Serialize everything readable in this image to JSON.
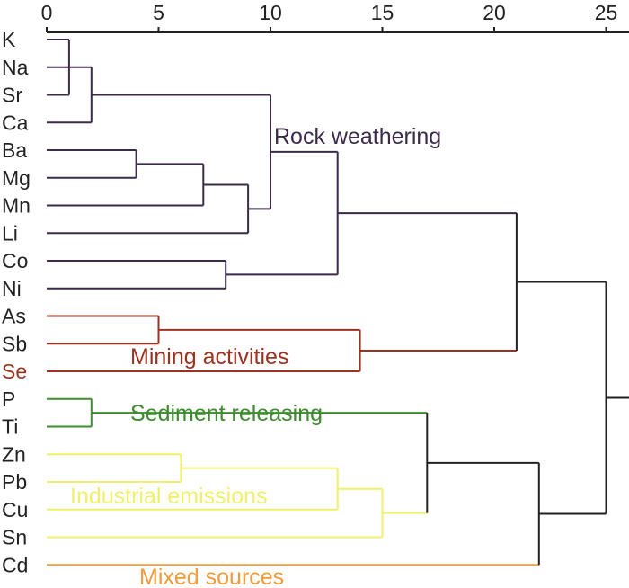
{
  "chart_data": {
    "type": "dendrogram",
    "xlim": [
      0,
      25
    ],
    "xticks": [
      0,
      5,
      10,
      15,
      20,
      25
    ],
    "tree": {
      "height": 25,
      "color": "#222222",
      "children": [
        {
          "height": 21,
          "color": "#222222",
          "children": [
            {
              "height": 13,
              "color": "#3b2a4a",
              "children": [
                {
                  "height": 10,
                  "color": "#3b2a4a",
                  "children": [
                    {
                      "height": 2,
                      "color": "#3b2a4a",
                      "children": [
                        {
                          "height": 1,
                          "color": "#3b2a4a",
                          "children": [
                            {
                              "label": "K",
                              "color": "#3b2a4a"
                            },
                            {
                              "label": "Na",
                              "color": "#3b2a4a"
                            },
                            {
                              "label": "Sr",
                              "color": "#3b2a4a"
                            }
                          ]
                        },
                        {
                          "label": "Ca",
                          "color": "#3b2a4a"
                        }
                      ]
                    },
                    {
                      "height": 9,
                      "color": "#3b2a4a",
                      "children": [
                        {
                          "height": 7,
                          "color": "#3b2a4a",
                          "children": [
                            {
                              "height": 4,
                              "color": "#3b2a4a",
                              "children": [
                                {
                                  "label": "Ba",
                                  "color": "#3b2a4a"
                                },
                                {
                                  "label": "Mg",
                                  "color": "#3b2a4a"
                                }
                              ]
                            },
                            {
                              "label": "Mn",
                              "color": "#3b2a4a"
                            }
                          ]
                        },
                        {
                          "label": "Li",
                          "color": "#3b2a4a"
                        }
                      ]
                    }
                  ]
                },
                {
                  "height": 8,
                  "color": "#3b2a4a",
                  "children": [
                    {
                      "label": "Co",
                      "color": "#3b2a4a"
                    },
                    {
                      "label": "Ni",
                      "color": "#3b2a4a"
                    }
                  ]
                }
              ]
            },
            {
              "height": 14,
              "color": "#9b3320",
              "children": [
                {
                  "height": 5,
                  "color": "#9b3320",
                  "children": [
                    {
                      "label": "As",
                      "color": "#9b3320"
                    },
                    {
                      "label": "Sb",
                      "color": "#9b3320"
                    }
                  ]
                },
                {
                  "label": "Se",
                  "color": "#9b3320",
                  "label_color": "#9b3320"
                }
              ]
            }
          ]
        },
        {
          "height": 22,
          "color": "#222222",
          "children": [
            {
              "height": 17,
              "color": "#222222",
              "children": [
                {
                  "height": 2,
                  "color": "#3d8c2e",
                  "children": [
                    {
                      "label": "P",
                      "color": "#3d8c2e"
                    },
                    {
                      "label": "Ti",
                      "color": "#3d8c2e"
                    }
                  ]
                },
                {
                  "height": 15,
                  "color": "#f0f06a",
                  "children": [
                    {
                      "height": 13,
                      "color": "#f0f06a",
                      "children": [
                        {
                          "height": 6,
                          "color": "#f0f06a",
                          "children": [
                            {
                              "label": "Zn",
                              "color": "#f0f06a"
                            },
                            {
                              "label": "Pb",
                              "color": "#f0f06a"
                            }
                          ]
                        },
                        {
                          "label": "Cu",
                          "color": "#f0f06a"
                        }
                      ]
                    },
                    {
                      "label": "Sn",
                      "color": "#f0f06a"
                    }
                  ]
                }
              ]
            },
            {
              "label": "Cd",
              "color": "#f29b3a"
            }
          ]
        }
      ]
    },
    "annotations": [
      {
        "text": "Rock weathering",
        "color": "#3b2a4a"
      },
      {
        "text": "Mining activities",
        "color": "#9b3320"
      },
      {
        "text": "Sediment releasing",
        "color": "#3d8c2e"
      },
      {
        "text": "Industrial emissions",
        "color": "#f0f06a"
      },
      {
        "text": "Mixed sources",
        "color": "#f29b3a"
      }
    ]
  }
}
